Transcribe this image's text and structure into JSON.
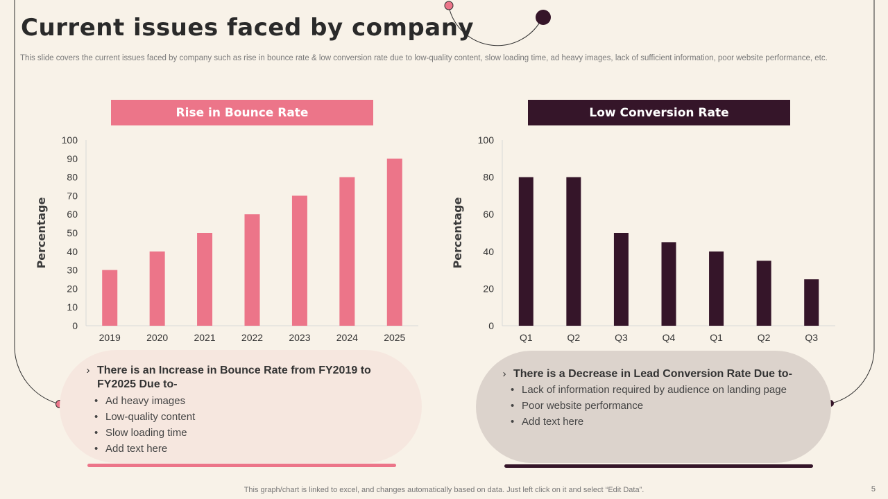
{
  "title": "Current issues faced by company",
  "subtitle": "This slide covers the current issues faced by company such as rise in bounce rate & low conversion rate due to  low-quality content, slow loading time, ad heavy images, lack of sufficient information, poor website performance, etc.",
  "colors": {
    "pink": "#ec7589",
    "plum": "#351529",
    "background": "#f8f2e8"
  },
  "left_panel": {
    "title": "Rise in Bounce Rate",
    "callout_heading": "There is an Increase in Bounce Rate from FY2019 to FY2025 Due to-",
    "bullets": [
      "Ad heavy images",
      "Low-quality content",
      "Slow loading time",
      "Add text here"
    ],
    "chevron_icon": "chevron-right-icon"
  },
  "right_panel": {
    "title": "Low Conversion Rate",
    "callout_heading": "There is a Decrease in Lead Conversion Rate Due to-",
    "bullets": [
      "Lack of information required by audience on landing page",
      "Poor website performance",
      "Add text here"
    ],
    "chevron_icon": "chevron-right-icon"
  },
  "chart_data": [
    {
      "type": "bar",
      "title": "Rise in Bounce Rate",
      "categories": [
        "2019",
        "2020",
        "2021",
        "2022",
        "2023",
        "2024",
        "2025"
      ],
      "values": [
        30,
        40,
        50,
        60,
        70,
        80,
        90
      ],
      "ylabel": "Percentage",
      "xlabel": "",
      "ylim": [
        0,
        100
      ],
      "yticks": [
        0,
        10,
        20,
        30,
        40,
        50,
        60,
        70,
        80,
        90,
        100
      ],
      "color": "#ec7589",
      "grid": false
    },
    {
      "type": "bar",
      "title": "Low Conversion Rate",
      "categories": [
        "Q1",
        "Q2",
        "Q3",
        "Q4",
        "Q1",
        "Q2",
        "Q3"
      ],
      "values": [
        80,
        80,
        50,
        45,
        40,
        35,
        25
      ],
      "ylabel": "Percentage",
      "xlabel": "",
      "ylim": [
        0,
        100
      ],
      "yticks": [
        0,
        20,
        40,
        60,
        80,
        100
      ],
      "color": "#351529",
      "grid": false
    }
  ],
  "footer": "This graph/chart is linked to excel,  and changes automatically based on data. Just left click on it and select “Edit Data”.",
  "page_number": "5"
}
